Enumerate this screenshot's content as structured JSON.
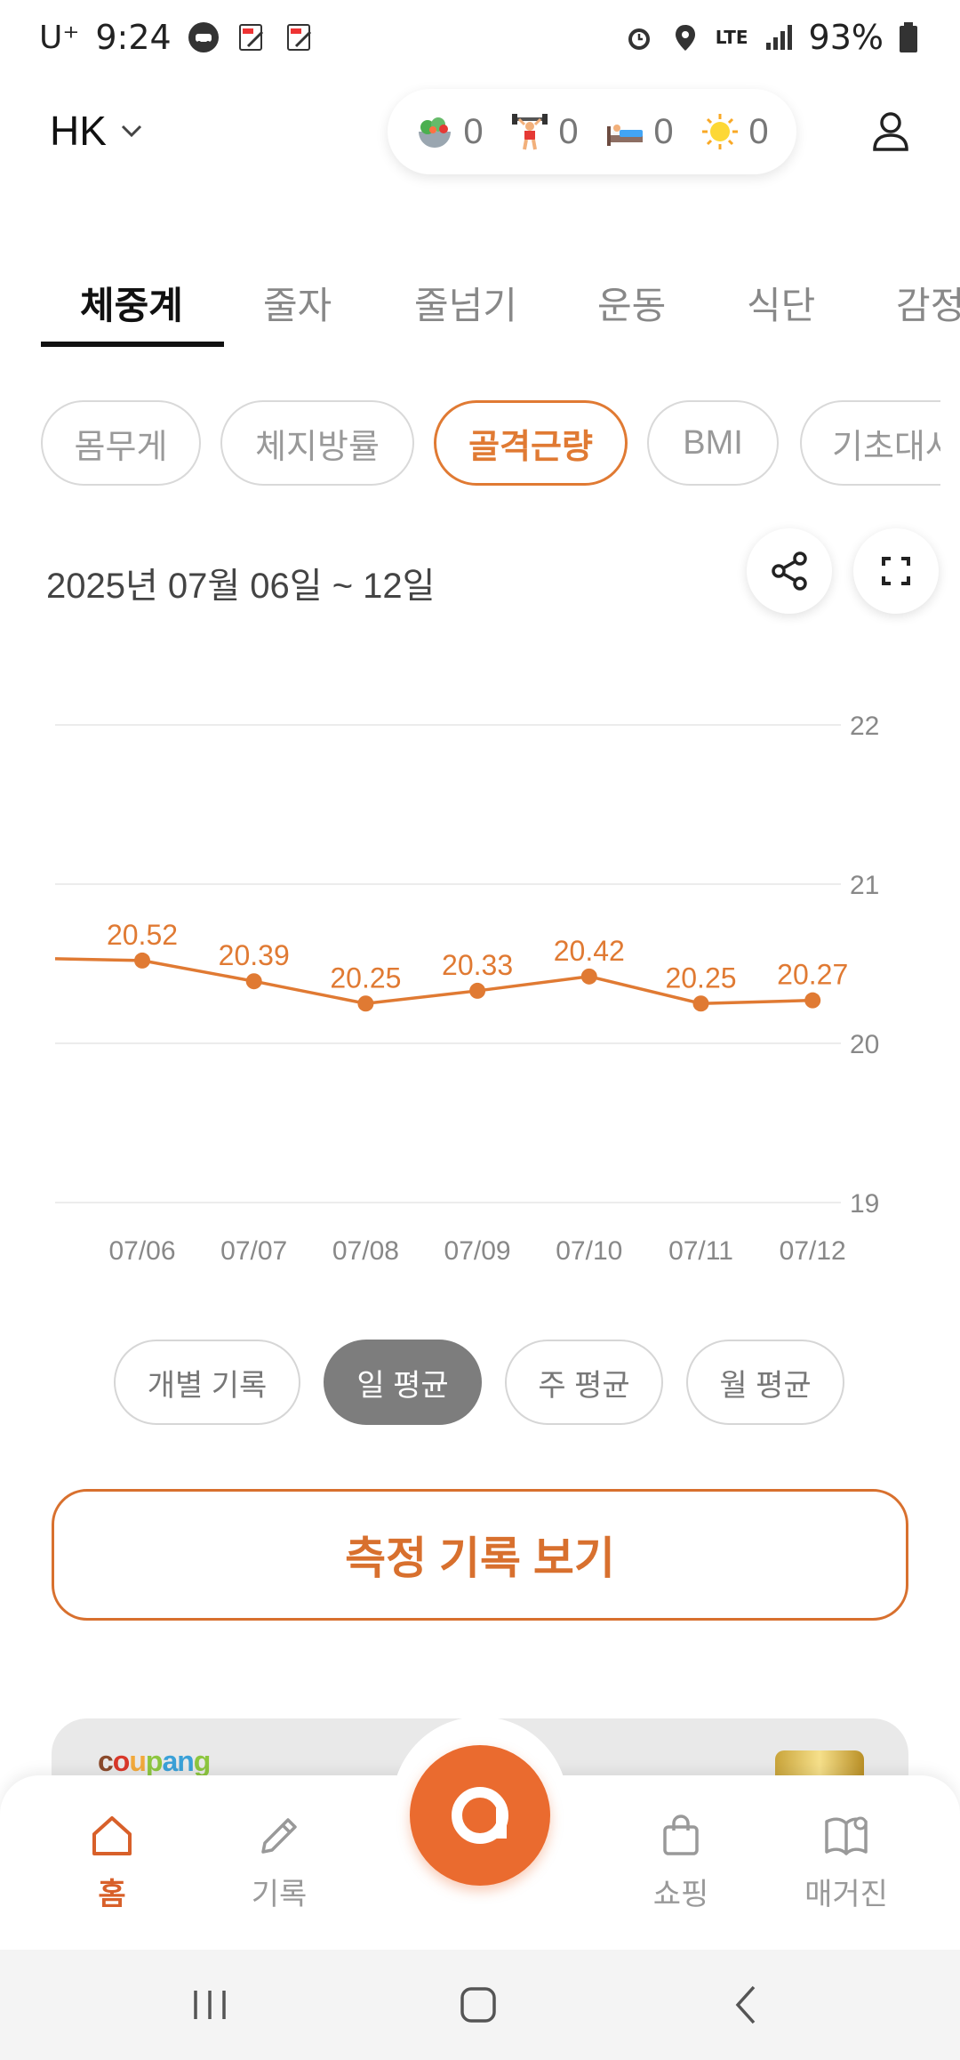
{
  "status_bar": {
    "carrier": "U⁺",
    "time": "9:24",
    "network": "LTE",
    "battery": "93%"
  },
  "header": {
    "user_name": "HK",
    "stats": [
      {
        "icon": "salad-icon",
        "value": "0"
      },
      {
        "icon": "weightlifter-icon",
        "value": "0"
      },
      {
        "icon": "bed-icon",
        "value": "0"
      },
      {
        "icon": "sun-icon",
        "value": "0"
      }
    ]
  },
  "tabs": [
    "체중계",
    "줄자",
    "줄넘기",
    "운동",
    "식단",
    "감정"
  ],
  "active_tab": "체중계",
  "chips": [
    "몸무게",
    "체지방률",
    "골격근량",
    "BMI",
    "기초대사"
  ],
  "active_chip": "골격근량",
  "date_range": "2025년 07월 06일 ~ 12일",
  "chart_data": {
    "type": "line",
    "categories": [
      "07/06",
      "07/07",
      "07/08",
      "07/09",
      "07/10",
      "07/11",
      "07/12"
    ],
    "values": [
      20.52,
      20.39,
      20.25,
      20.33,
      20.42,
      20.25,
      20.27
    ],
    "value_labels": [
      "20.52",
      "20.39",
      "20.25",
      "20.33",
      "20.42",
      "20.25",
      "20.27"
    ],
    "y_ticks": [
      "22",
      "21",
      "20",
      "19"
    ],
    "ylim": [
      19,
      22
    ],
    "y_axis_side": "right",
    "grid": true,
    "color": "#e07a33"
  },
  "aggregation": [
    "개별 기록",
    "일 평균",
    "주 평균",
    "월 평균"
  ],
  "active_aggregation": "일 평균",
  "primary_button": "측정 기록 보기",
  "ad": {
    "brand": "coupang"
  },
  "bottom_nav": {
    "items": [
      {
        "label": "홈",
        "icon": "home-icon"
      },
      {
        "label": "기록",
        "icon": "pencil-icon"
      },
      {
        "label": "쇼핑",
        "icon": "shopping-bag-icon"
      },
      {
        "label": "매거진",
        "icon": "magazine-icon"
      }
    ],
    "active": "홈"
  },
  "colors": {
    "accent": "#e07a33",
    "fab": "#ea6b2f"
  }
}
